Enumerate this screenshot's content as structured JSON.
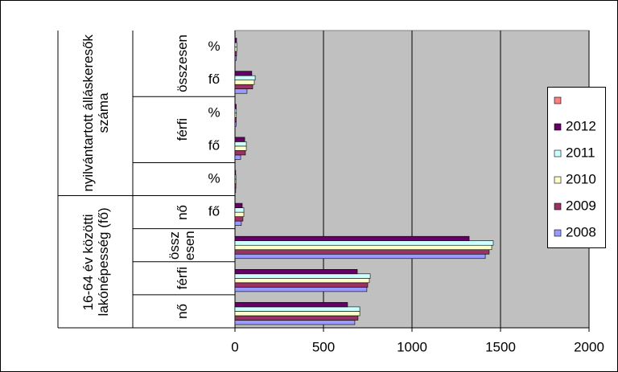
{
  "chart_data": {
    "type": "bar",
    "orientation": "horizontal",
    "categories": [
      "%",
      "fő",
      "%",
      "fő",
      "%",
      "fő",
      null,
      null,
      null
    ],
    "groups": [
      "összesen",
      "férfi",
      "nő",
      "összesen",
      "férfi",
      "nő"
    ],
    "supergroups": [
      "nyilvántartott álláskeresők száma",
      "16-64 év közötti lakónépesség (fő)"
    ],
    "series": [
      {
        "name": "2008",
        "color": "#9999ff",
        "values": [
          8,
          68,
          6,
          32,
          4,
          36,
          1414,
          745,
          677
        ]
      },
      {
        "name": "2009",
        "color": "#993366",
        "values": [
          9,
          100,
          7,
          59,
          5,
          45,
          1436,
          750,
          695
        ]
      },
      {
        "name": "2010",
        "color": "#ffffcc",
        "values": [
          10,
          109,
          8,
          64,
          5,
          50,
          1450,
          759,
          705
        ]
      },
      {
        "name": "2011",
        "color": "#ccffff",
        "values": [
          10,
          114,
          8,
          64,
          5,
          50,
          1459,
          764,
          705
        ]
      },
      {
        "name": "2012",
        "color": "#660066",
        "values": [
          9,
          95,
          7,
          55,
          4,
          41,
          1323,
          691,
          636
        ]
      },
      {
        "name": null,
        "color": "#ff8080",
        "values": [
          null,
          null,
          null,
          null,
          null,
          null,
          null,
          null,
          null
        ]
      }
    ],
    "xlim": [
      0,
      2000
    ],
    "xticks": [
      0,
      500,
      1000,
      1500,
      2000
    ],
    "grid": true,
    "legend": "right"
  }
}
